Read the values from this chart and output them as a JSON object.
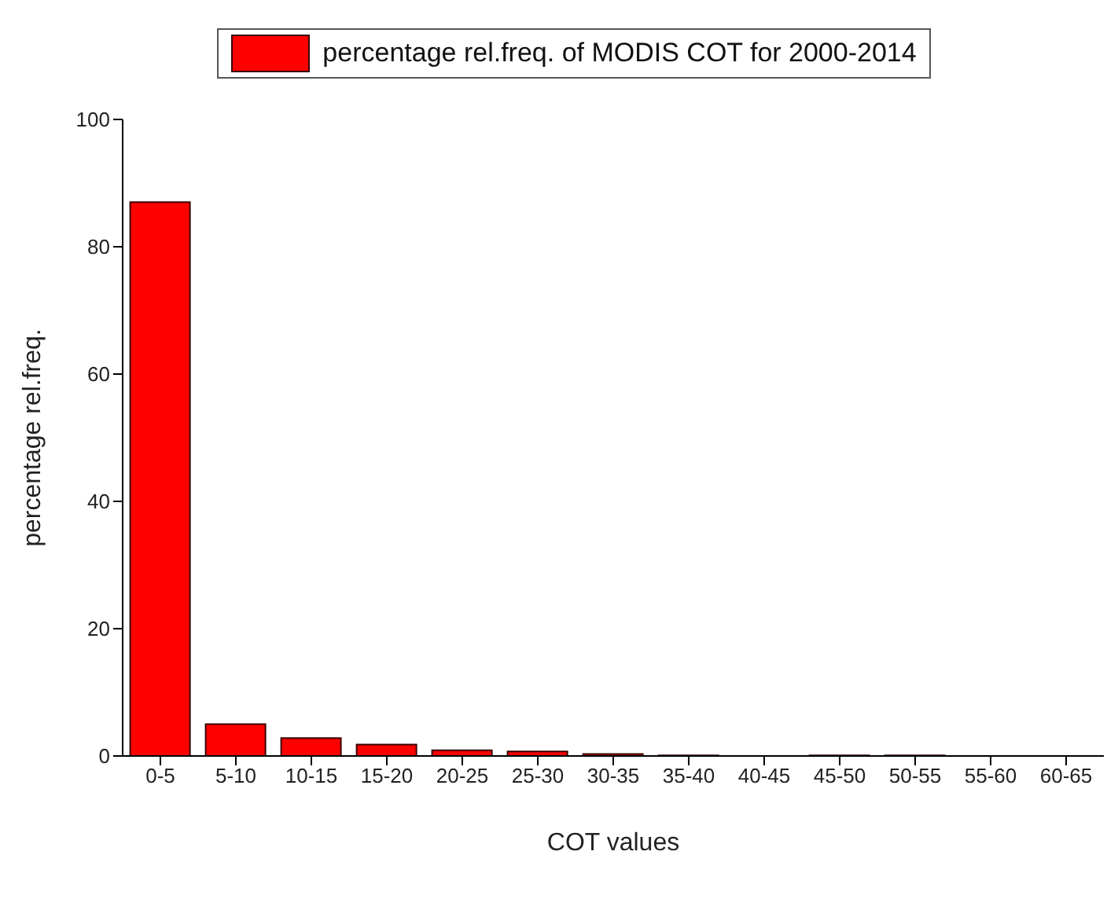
{
  "chart_data": {
    "type": "bar",
    "xlabel": "COT values",
    "ylabel": "percentage rel.freq.",
    "categories": [
      "0-5",
      "5-10",
      "10-15",
      "15-20",
      "20-25",
      "25-30",
      "30-35",
      "35-40",
      "40-45",
      "45-50",
      "50-55",
      "55-60",
      "60-65"
    ],
    "series": [
      {
        "name": "percentage rel.freq. of MODIS COT for 2000-2014",
        "color": "#ff0000",
        "values": [
          87,
          5,
          2.8,
          1.8,
          0.9,
          0.7,
          0.3,
          0.1,
          0,
          0.1,
          0.1,
          0,
          0
        ]
      }
    ],
    "ylim": [
      0,
      100
    ],
    "yticks": [
      0,
      20,
      40,
      60,
      80,
      100
    ],
    "grid": false,
    "legend": "top"
  }
}
